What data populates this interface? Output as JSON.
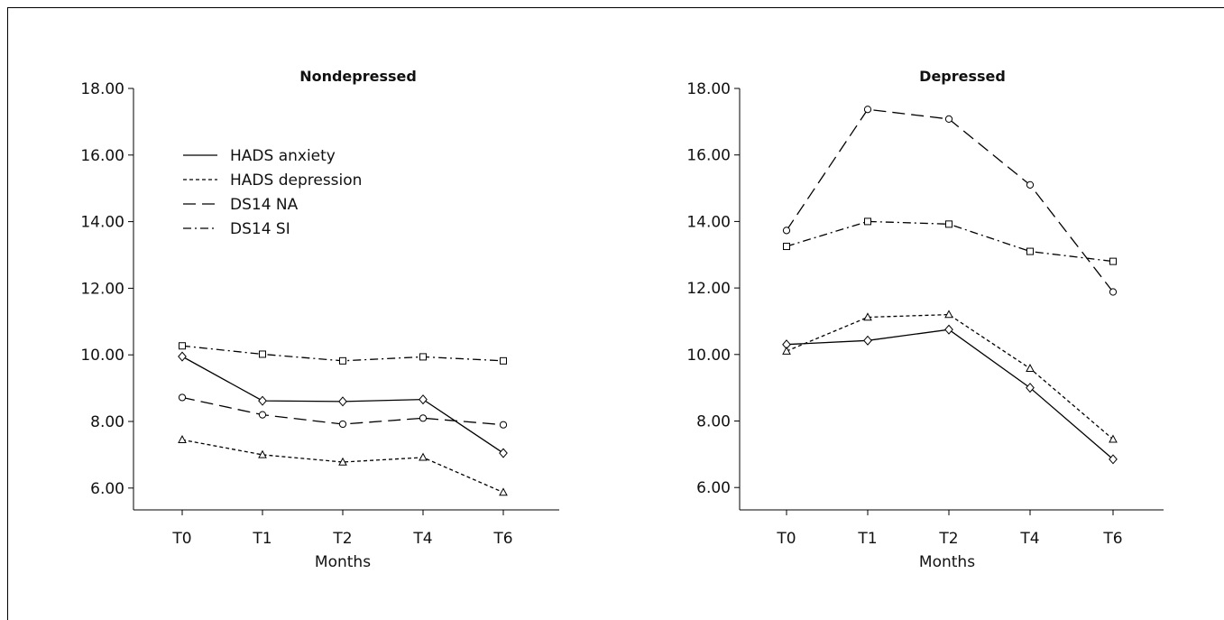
{
  "chart_data": [
    {
      "type": "line",
      "title": "Nondepressed",
      "xlabel": "Months",
      "ylabel": "",
      "categories": [
        "T0",
        "T1",
        "T2",
        "T4",
        "T6"
      ],
      "ylim": [
        5.3,
        18.0
      ],
      "yticks": [
        "18.00",
        "16.00",
        "14.00",
        "12.00",
        "10.00",
        "8.00",
        "6.00"
      ],
      "yticks_values": [
        18,
        16,
        14,
        12,
        10,
        8,
        6
      ],
      "series": [
        {
          "name": "HADS anxiety",
          "dash": "solid",
          "marker": "diamond",
          "values": [
            9.95,
            8.62,
            8.6,
            8.66,
            7.05
          ]
        },
        {
          "name": "HADS depression",
          "dash": "short-dash",
          "marker": "triangle",
          "values": [
            7.45,
            7.0,
            6.78,
            6.92,
            5.87
          ]
        },
        {
          "name": "DS14 NA",
          "dash": "long-dash",
          "marker": "circle",
          "values": [
            8.72,
            8.2,
            7.92,
            8.1,
            7.9
          ]
        },
        {
          "name": "DS14 SI",
          "dash": "dash-dot",
          "marker": "square",
          "values": [
            10.27,
            10.02,
            9.82,
            9.94,
            9.82
          ]
        }
      ],
      "legend": "top-left",
      "grid": false
    },
    {
      "type": "line",
      "title": "Depressed",
      "xlabel": "Months",
      "ylabel": "",
      "categories": [
        "T0",
        "T1",
        "T2",
        "T4",
        "T6"
      ],
      "ylim": [
        5.3,
        18.0
      ],
      "yticks": [
        "18.00",
        "16.00",
        "14.00",
        "12.00",
        "10.00",
        "8.00",
        "6.00"
      ],
      "yticks_values": [
        18,
        16,
        14,
        12,
        10,
        8,
        6
      ],
      "series": [
        {
          "name": "HADS anxiety",
          "dash": "solid",
          "marker": "diamond",
          "values": [
            10.3,
            10.42,
            10.75,
            9.0,
            6.85
          ]
        },
        {
          "name": "HADS depression",
          "dash": "short-dash",
          "marker": "triangle",
          "values": [
            10.1,
            11.12,
            11.2,
            9.58,
            7.45
          ]
        },
        {
          "name": "DS14 NA",
          "dash": "long-dash",
          "marker": "circle",
          "values": [
            13.73,
            17.37,
            17.08,
            15.1,
            11.88
          ]
        },
        {
          "name": "DS14 SI",
          "dash": "dash-dot",
          "marker": "square",
          "values": [
            13.25,
            14.0,
            13.92,
            13.1,
            12.8
          ]
        }
      ],
      "legend": "none",
      "grid": false
    }
  ]
}
